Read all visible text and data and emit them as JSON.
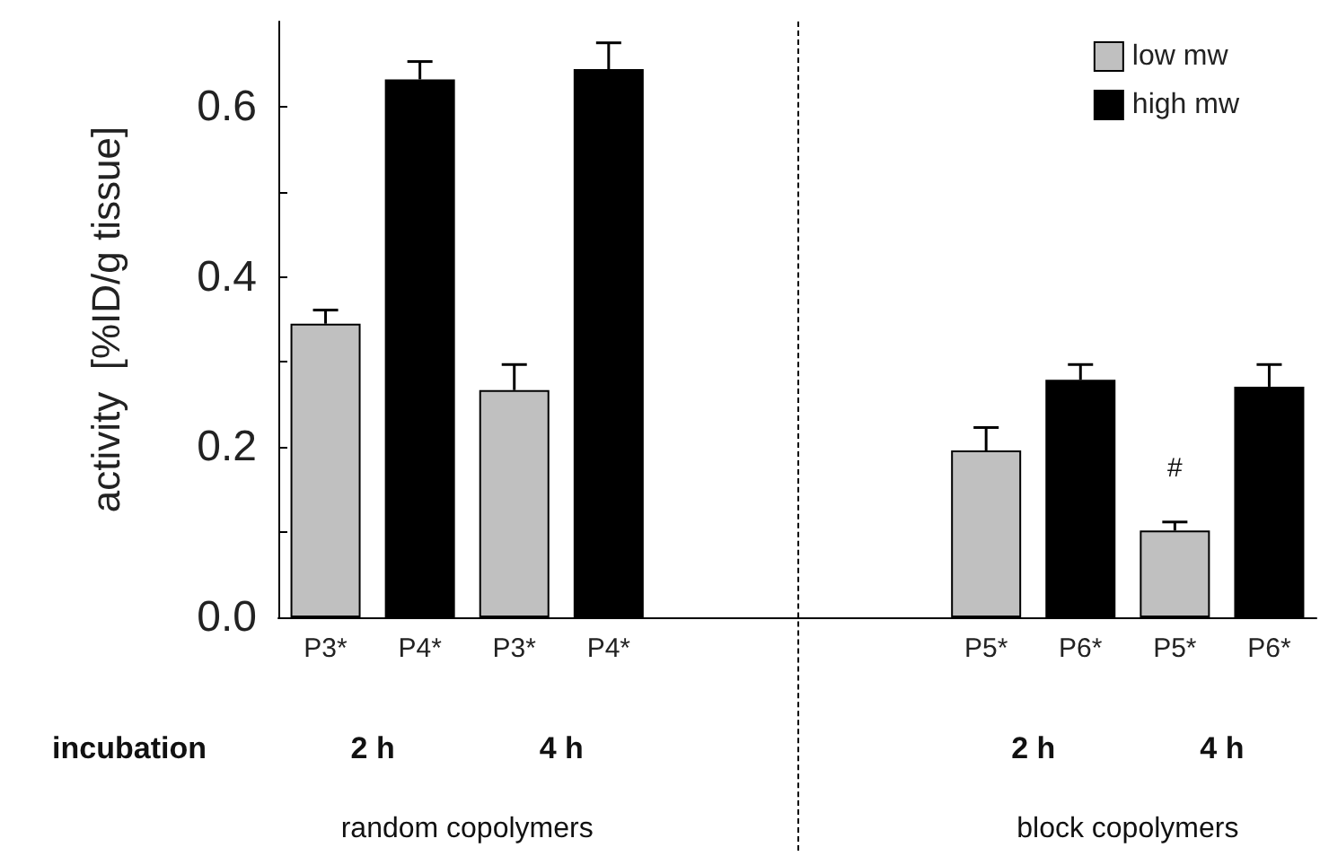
{
  "chart_data": {
    "type": "bar",
    "ylabel": "activity  [%ID/g tissue]",
    "categories": [
      "P3*",
      "P4*",
      "P3*",
      "P4*",
      null,
      null,
      null,
      "P5*",
      "P6*",
      "P5*",
      "P6*"
    ],
    "series": [
      {
        "name": "low mw",
        "color": "#c0c0c0",
        "values": [
          0.345,
          null,
          0.267,
          null,
          null,
          null,
          null,
          0.196,
          null,
          0.102,
          null
        ],
        "errors": [
          [
            0.345,
            0.361
          ],
          null,
          [
            0.267,
            0.297
          ],
          null,
          null,
          null,
          null,
          [
            0.196,
            0.223
          ],
          null,
          [
            0.102,
            0.112
          ],
          null
        ]
      },
      {
        "name": "high mw",
        "color": "#000000",
        "values": [
          null,
          0.632,
          null,
          0.644,
          null,
          null,
          null,
          null,
          0.279,
          null,
          0.271
        ],
        "errors": [
          null,
          [
            0.632,
            0.653
          ],
          null,
          [
            0.644,
            0.675
          ],
          null,
          null,
          null,
          null,
          [
            0.279,
            0.297
          ],
          null,
          [
            0.271,
            0.297
          ]
        ]
      }
    ],
    "ylim": [
      0,
      0.7
    ],
    "yticks": [
      {
        "value": 0,
        "label": "0.0"
      },
      {
        "value": 0.1,
        "label": null
      },
      {
        "value": 0.2,
        "label": "0.2"
      },
      {
        "value": 0.3,
        "label": null
      },
      {
        "value": 0.4,
        "label": "0.4"
      },
      {
        "value": 0.5,
        "label": null
      },
      {
        "value": 0.6,
        "label": "0.6"
      }
    ],
    "legend": "top right",
    "annotations": [
      "#",
      "incubation",
      "2 h",
      "4 h",
      "2 h",
      "4 h",
      "random copolymers",
      "block copolymers"
    ]
  }
}
